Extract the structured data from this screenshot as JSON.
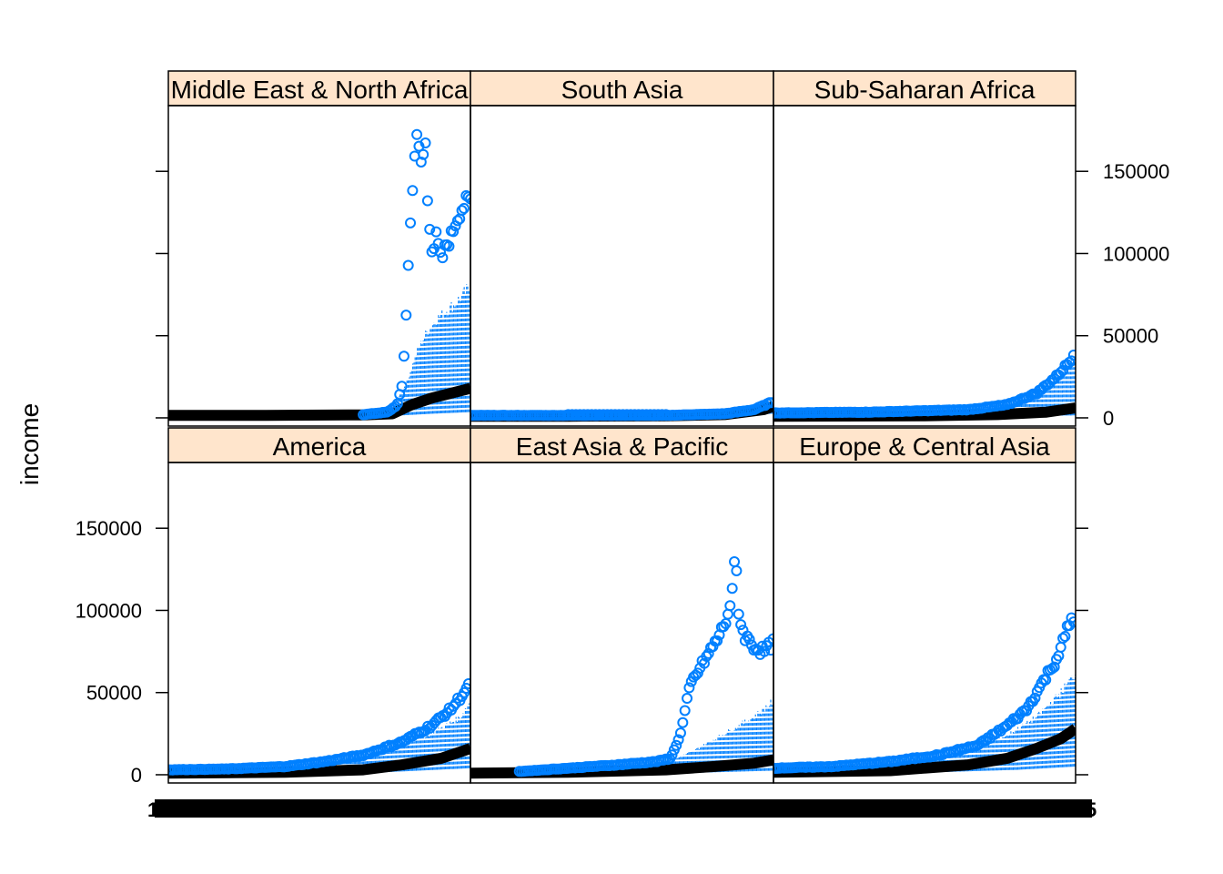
{
  "chart_data": {
    "type": "scatter",
    "layout": "lattice 3x2 panels, bottom row: America, East Asia & Pacific, Europe & Central Asia; top row: Middle East & North Africa, South Asia, Sub-Saharan Africa",
    "ylabel": "income",
    "xlabel": "",
    "ylim": [
      -5000,
      190000
    ],
    "yticks": [
      0,
      50000,
      100000,
      150000
    ],
    "ytick_labels": [
      "0",
      "50000",
      "100000",
      "150000"
    ],
    "x_axis_note": "categorical years 1800-2040; tick labels overprinted and illegible",
    "xtick_labels": [
      "1",
      "5"
    ],
    "x_range_index": [
      0,
      240
    ],
    "grid": false,
    "legend": "none",
    "colors": {
      "points": "#0080ff",
      "dense_line": "#000000",
      "strip_bg": "#ffe5cc",
      "frame": "#000000"
    },
    "panels": [
      {
        "title": "Middle East & North Africa",
        "peak_series": [
          [
            200,
            2000
          ],
          [
            225,
            3500
          ],
          [
            235,
            8000
          ],
          [
            240,
            20000
          ],
          [
            243,
            50000
          ],
          [
            246,
            90000
          ],
          [
            249,
            125000
          ],
          [
            252,
            158000
          ],
          [
            255,
            168000
          ],
          [
            258,
            160000
          ],
          [
            261,
            150000
          ],
          [
            263,
            183000
          ],
          [
            265,
            140000
          ],
          [
            268,
            120000
          ],
          [
            271,
            100000
          ],
          [
            275,
            110000
          ],
          [
            280,
            95000
          ],
          [
            285,
            105000
          ],
          [
            290,
            110000
          ],
          [
            295,
            120000
          ],
          [
            300,
            127000
          ],
          [
            305,
            130000
          ],
          [
            310,
            132000
          ]
        ],
        "upper_band": [
          [
            200,
            2000
          ],
          [
            225,
            3500
          ],
          [
            235,
            12000
          ],
          [
            245,
            22000
          ],
          [
            255,
            40000
          ],
          [
            265,
            52000
          ],
          [
            275,
            60000
          ],
          [
            285,
            65000
          ],
          [
            295,
            70000
          ],
          [
            310,
            80000
          ]
        ],
        "median_line": [
          [
            0,
            1500
          ],
          [
            100,
            1500
          ],
          [
            200,
            1800
          ],
          [
            230,
            2500
          ],
          [
            250,
            8000
          ],
          [
            270,
            12000
          ],
          [
            290,
            15000
          ],
          [
            310,
            18000
          ]
        ],
        "low_line": [
          [
            0,
            500
          ],
          [
            150,
            600
          ],
          [
            230,
            1200
          ],
          [
            270,
            2500
          ],
          [
            310,
            3500
          ]
        ]
      },
      {
        "title": "South Asia",
        "peak_series": [
          [
            0,
            1500
          ],
          [
            100,
            1500
          ],
          [
            200,
            1500
          ],
          [
            260,
            2500
          ],
          [
            290,
            5000
          ],
          [
            310,
            10000
          ]
        ],
        "upper_band": [
          [
            0,
            1200
          ],
          [
            150,
            1300
          ],
          [
            260,
            2000
          ],
          [
            300,
            6000
          ],
          [
            310,
            8000
          ]
        ],
        "median_line": [
          [
            0,
            900
          ],
          [
            100,
            1000
          ],
          [
            200,
            1200
          ],
          [
            260,
            2000
          ],
          [
            300,
            5000
          ],
          [
            310,
            7000
          ]
        ],
        "low_line": [
          [
            0,
            600
          ],
          [
            200,
            700
          ],
          [
            310,
            2500
          ]
        ],
        "flat_points_y": 2000
      },
      {
        "title": "Sub-Saharan Africa",
        "peak_series": [
          [
            0,
            3000
          ],
          [
            100,
            3500
          ],
          [
            200,
            5000
          ],
          [
            240,
            8000
          ],
          [
            270,
            15000
          ],
          [
            290,
            25000
          ],
          [
            305,
            35000
          ],
          [
            310,
            42000
          ]
        ],
        "upper_band": [
          [
            0,
            2500
          ],
          [
            100,
            3000
          ],
          [
            200,
            4500
          ],
          [
            250,
            10000
          ],
          [
            280,
            20000
          ],
          [
            300,
            30000
          ],
          [
            310,
            38000
          ]
        ],
        "median_line": [
          [
            0,
            1000
          ],
          [
            150,
            1200
          ],
          [
            230,
            2000
          ],
          [
            280,
            3500
          ],
          [
            310,
            6000
          ]
        ],
        "low_line": [
          [
            0,
            600
          ],
          [
            200,
            700
          ],
          [
            310,
            1500
          ]
        ]
      },
      {
        "title": "America",
        "peak_series": [
          [
            0,
            3000
          ],
          [
            60,
            3500
          ],
          [
            120,
            5000
          ],
          [
            160,
            8000
          ],
          [
            200,
            12000
          ],
          [
            240,
            20000
          ],
          [
            270,
            30000
          ],
          [
            290,
            40000
          ],
          [
            310,
            55000
          ]
        ],
        "upper_band": [
          [
            0,
            2500
          ],
          [
            100,
            4000
          ],
          [
            180,
            9000
          ],
          [
            230,
            16000
          ],
          [
            270,
            25000
          ],
          [
            300,
            35000
          ],
          [
            310,
            45000
          ]
        ],
        "median_line": [
          [
            0,
            1000
          ],
          [
            120,
            1500
          ],
          [
            200,
            3000
          ],
          [
            240,
            6000
          ],
          [
            280,
            10000
          ],
          [
            310,
            16000
          ]
        ],
        "low_line": [
          [
            0,
            600
          ],
          [
            200,
            900
          ],
          [
            310,
            4000
          ]
        ]
      },
      {
        "title": "East Asia & Pacific",
        "peak_series": [
          [
            50,
            2000
          ],
          [
            100,
            4000
          ],
          [
            150,
            6000
          ],
          [
            190,
            8000
          ],
          [
            205,
            10000
          ],
          [
            215,
            25000
          ],
          [
            225,
            55000
          ],
          [
            235,
            65000
          ],
          [
            245,
            75000
          ],
          [
            255,
            85000
          ],
          [
            262,
            95000
          ],
          [
            268,
            110000
          ],
          [
            271,
            135000
          ],
          [
            275,
            95000
          ],
          [
            280,
            85000
          ],
          [
            290,
            78000
          ],
          [
            300,
            75000
          ],
          [
            310,
            80000
          ]
        ],
        "upper_band": [
          [
            50,
            1500
          ],
          [
            150,
            4000
          ],
          [
            200,
            7000
          ],
          [
            230,
            15000
          ],
          [
            260,
            25000
          ],
          [
            290,
            35000
          ],
          [
            310,
            45000
          ]
        ],
        "median_line": [
          [
            0,
            1000
          ],
          [
            100,
            1500
          ],
          [
            200,
            3000
          ],
          [
            250,
            5000
          ],
          [
            290,
            7000
          ],
          [
            310,
            9000
          ]
        ],
        "low_line": [
          [
            0,
            500
          ],
          [
            200,
            700
          ],
          [
            310,
            2500
          ]
        ]
      },
      {
        "title": "Europe & Central Asia",
        "peak_series": [
          [
            0,
            4000
          ],
          [
            60,
            5000
          ],
          [
            120,
            8000
          ],
          [
            170,
            12000
          ],
          [
            210,
            18000
          ],
          [
            240,
            30000
          ],
          [
            260,
            40000
          ],
          [
            275,
            55000
          ],
          [
            290,
            70000
          ],
          [
            300,
            85000
          ],
          [
            305,
            95000
          ],
          [
            310,
            92000
          ]
        ],
        "upper_band": [
          [
            0,
            3500
          ],
          [
            120,
            7000
          ],
          [
            200,
            14000
          ],
          [
            240,
            24000
          ],
          [
            270,
            35000
          ],
          [
            295,
            50000
          ],
          [
            310,
            62000
          ]
        ],
        "median_line": [
          [
            0,
            1500
          ],
          [
            120,
            2500
          ],
          [
            200,
            6000
          ],
          [
            240,
            10000
          ],
          [
            270,
            16000
          ],
          [
            295,
            22000
          ],
          [
            310,
            28000
          ]
        ],
        "low_line": [
          [
            0,
            800
          ],
          [
            150,
            1200
          ],
          [
            250,
            3000
          ],
          [
            310,
            5000
          ]
        ]
      }
    ]
  }
}
